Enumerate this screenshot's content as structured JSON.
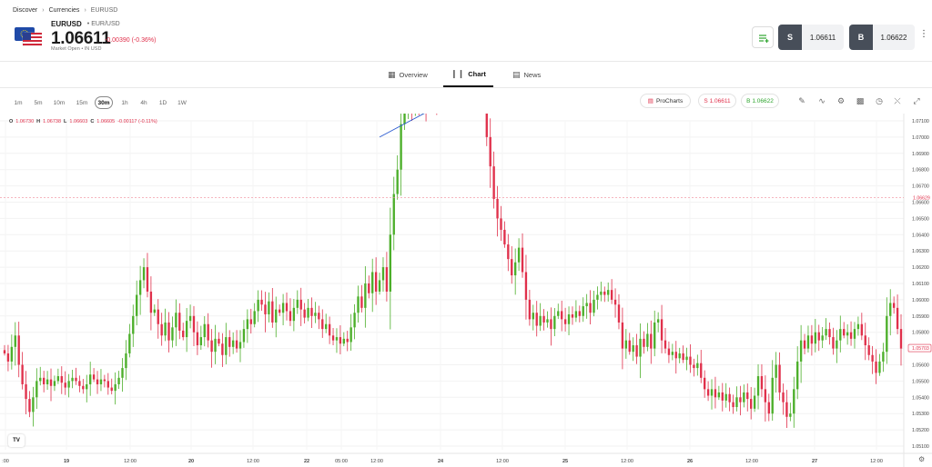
{
  "breadcrumb": {
    "items": [
      "Discover",
      "Currencies"
    ],
    "current": "EURUSD"
  },
  "instrument": {
    "symbol": "EURUSD",
    "pair": "EUR/USD",
    "price": "1.06611",
    "change": "-0.00390 (-0.36%)",
    "status": "Market Open",
    "currency": "IN USD"
  },
  "trade": {
    "sell_label": "S",
    "sell_price": "1.06611",
    "buy_label": "B",
    "buy_price": "1.06622"
  },
  "tabs": [
    {
      "label": "Overview",
      "icon": "grid-icon"
    },
    {
      "label": "Chart",
      "icon": "candles-icon"
    },
    {
      "label": "News",
      "icon": "news-icon"
    }
  ],
  "active_tab": "Chart",
  "timeframes": [
    "1m",
    "5m",
    "10m",
    "15m",
    "30m",
    "1h",
    "4h",
    "1D",
    "1W"
  ],
  "active_timeframe": "30m",
  "toolbar": {
    "prochart_label": "ProCharts",
    "sell_pill": "S 1.06611",
    "buy_pill": "B 1.06622",
    "icons": [
      "pencil-icon",
      "indicators-icon",
      "settings-icon",
      "chart-type-icon",
      "clock-icon",
      "share-icon",
      "expand-icon"
    ]
  },
  "ohlc": {
    "o_label": "O",
    "o": "1.06730",
    "h_label": "H",
    "h": "1.06738",
    "l_label": "L",
    "l": "1.06603",
    "c_label": "C",
    "c": "1.06605",
    "change": "-0.00117 (-0.11%)"
  },
  "chart_data": {
    "type": "candlestick",
    "title": "",
    "xlabel": "",
    "ylabel": "",
    "ylim": [
      1.051,
      1.071
    ],
    "yticks": [
      "1.07100",
      "1.07000",
      "1.06900",
      "1.06800",
      "1.06700",
      "1.06600",
      "1.06500",
      "1.06400",
      "1.06300",
      "1.06200",
      "1.06100",
      "1.06000",
      "1.05900",
      "1.05800",
      "1.05700",
      "1.05600",
      "1.05500",
      "1.05400",
      "1.05300",
      "1.05200",
      "1.05100"
    ],
    "xticks": [
      ":00",
      "19",
      "12:00",
      "20",
      "12:00",
      "22",
      "05:00",
      "12:00",
      "24",
      "12:00",
      "25",
      "12:00",
      "26",
      "12:00",
      "27",
      "12:00"
    ],
    "current_price_label": "1.06629",
    "current_price": 1.06629,
    "last_price_label": "1.05703",
    "last_price": 1.05703,
    "grid": true,
    "closes": [
      1.0567,
      1.0562,
      1.0571,
      1.0578,
      1.056,
      1.0548,
      1.0539,
      1.0531,
      1.054,
      1.055,
      1.0552,
      1.0548,
      1.0551,
      1.0547,
      1.055,
      1.0553,
      1.0549,
      1.0546,
      1.055,
      1.0552,
      1.055,
      1.0547,
      1.0545,
      1.0548,
      1.0554,
      1.0551,
      1.0548,
      1.0551,
      1.055,
      1.0546,
      1.0544,
      1.0548,
      1.0552,
      1.0558,
      1.0567,
      1.0579,
      1.059,
      1.0603,
      1.0612,
      1.062,
      1.0605,
      1.0592,
      1.0594,
      1.0585,
      1.0578,
      1.0586,
      1.0575,
      1.0583,
      1.0592,
      1.0581,
      1.0577,
      1.0587,
      1.059,
      1.058,
      1.0572,
      1.0577,
      1.0585,
      1.0575,
      1.0568,
      1.0576,
      1.0573,
      1.0566,
      1.0577,
      1.0571,
      1.0575,
      1.057,
      1.0574,
      1.0582,
      1.0588,
      1.0585,
      1.0593,
      1.06,
      1.0597,
      1.0591,
      1.0599,
      1.0586,
      1.0594,
      1.0592,
      1.0598,
      1.0593,
      1.0587,
      1.0595,
      1.06,
      1.0594,
      1.0589,
      1.0595,
      1.059,
      1.0592,
      1.0588,
      1.0582,
      1.0585,
      1.0578,
      1.0575,
      1.0577,
      1.0573,
      1.0576,
      1.0574,
      1.0583,
      1.0592,
      1.0602,
      1.0595,
      1.061,
      1.0604,
      1.0617,
      1.0605,
      1.0612,
      1.062,
      1.0605,
      1.064,
      1.0665,
      1.068,
      1.0708,
      1.0718,
      1.0722,
      1.0716,
      1.0721,
      1.0718,
      1.0723,
      1.0719,
      1.0724,
      1.0726,
      1.0721,
      1.0725,
      1.0728,
      1.0726,
      1.0742,
      1.074,
      1.0744,
      1.0738,
      1.0741,
      1.0737,
      1.0743,
      1.0745,
      1.0744,
      1.073,
      1.07,
      1.0682,
      1.0662,
      1.065,
      1.0643,
      1.0634,
      1.0625,
      1.0615,
      1.0623,
      1.0632,
      1.0617,
      1.06,
      1.0588,
      1.0592,
      1.0584,
      1.059,
      1.0586,
      1.0588,
      1.0582,
      1.059,
      1.0593,
      1.0588,
      1.0585,
      1.0591,
      1.0589,
      1.0593,
      1.059,
      1.0596,
      1.0598,
      1.0592,
      1.06,
      1.0603,
      1.0605,
      1.0603,
      1.0606,
      1.06,
      1.0597,
      1.0586,
      1.057,
      1.0575,
      1.0568,
      1.0572,
      1.0565,
      1.0576,
      1.0571,
      1.0579,
      1.057,
      1.0586,
      1.0588,
      1.0575,
      1.057,
      1.0566,
      1.0568,
      1.0564,
      1.0567,
      1.0563,
      1.0565,
      1.056,
      1.0558,
      1.0561,
      1.0552,
      1.0545,
      1.0541,
      1.0545,
      1.054,
      1.0543,
      1.0538,
      1.0542,
      1.0537,
      1.0534,
      1.054,
      1.0537,
      1.0543,
      1.0539,
      1.0533,
      1.0541,
      1.0553,
      1.0545,
      1.0537,
      1.053,
      1.0552,
      1.056,
      1.0543,
      1.0537,
      1.0528,
      1.053,
      1.0545,
      1.0562,
      1.0575,
      1.057,
      1.0578,
      1.0573,
      1.058,
      1.0575,
      1.0578,
      1.0582,
      1.0577,
      1.057,
      1.0575,
      1.0582,
      1.0578,
      1.058,
      1.0576,
      1.0582,
      1.0585,
      1.0578,
      1.0572,
      1.0566,
      1.0562,
      1.0555,
      1.0562,
      1.0568,
      1.059,
      1.0598,
      1.0595,
      1.0582,
      1.057
    ]
  }
}
